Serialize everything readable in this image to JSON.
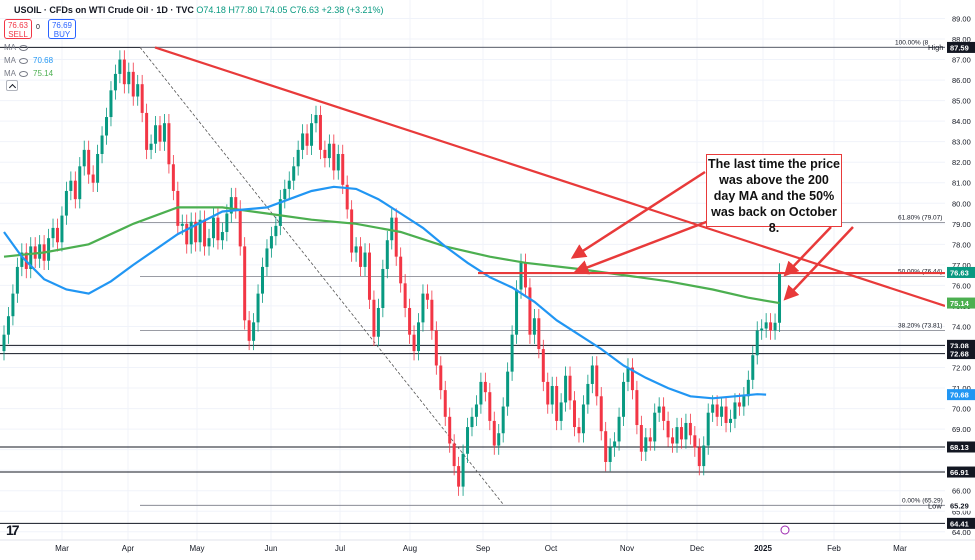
{
  "header": {
    "symbol": "USOIL · CFDs on WTI Crude Oil · 1D · TVC",
    "ohlc": "O74.18 H77.80 L74.05 C76.63 +2.38 (+3.21%)",
    "sell_price": "76.63",
    "sell_label": "SELL",
    "spread": "0",
    "buy_price": "76.69",
    "buy_label": "BUY"
  },
  "indicators": [
    {
      "label": "MA",
      "value": "",
      "color": "#787b86"
    },
    {
      "label": "MA",
      "value": "70.68",
      "color": "#2196f3"
    },
    {
      "label": "MA",
      "value": "75.14",
      "color": "#4caf50"
    }
  ],
  "annotation": "The last time the price was above the 200 day MA and the 50% was back on October 8.",
  "chart_data": {
    "type": "candlestick",
    "x_labels": [
      "Mar",
      "Apr",
      "May",
      "Jun",
      "Jul",
      "Aug",
      "Sep",
      "Oct",
      "Nov",
      "Dec",
      "2025",
      "Feb",
      "Mar"
    ],
    "ylim": [
      63.6,
      89.9
    ],
    "y_ticks": [
      64.0,
      65.0,
      66.0,
      67.0,
      68.0,
      69.0,
      70.0,
      71.0,
      72.0,
      73.0,
      74.0,
      75.0,
      76.0,
      77.0,
      78.0,
      79.0,
      80.0,
      81.0,
      82.0,
      83.0,
      84.0,
      85.0,
      86.0,
      87.0,
      88.0,
      89.0
    ],
    "candles": [
      {
        "d": 1,
        "o": 72.8,
        "c": 73.6
      },
      {
        "d": 2,
        "o": 73.6,
        "c": 74.5
      },
      {
        "d": 3,
        "o": 74.5,
        "c": 75.6
      },
      {
        "d": 4,
        "o": 75.6,
        "c": 76.9
      },
      {
        "d": 5,
        "o": 76.9,
        "c": 77.6
      },
      {
        "d": 6,
        "o": 77.6,
        "c": 76.8
      },
      {
        "d": 7,
        "o": 76.8,
        "c": 77.9
      },
      {
        "d": 8,
        "o": 77.9,
        "c": 77.3
      },
      {
        "d": 9,
        "o": 77.3,
        "c": 78.0
      },
      {
        "d": 10,
        "o": 78.0,
        "c": 77.2
      },
      {
        "d": 11,
        "o": 77.2,
        "c": 78.3
      },
      {
        "d": 12,
        "o": 78.3,
        "c": 78.8
      },
      {
        "d": 13,
        "o": 78.8,
        "c": 78.1
      },
      {
        "d": 14,
        "o": 78.1,
        "c": 79.4
      },
      {
        "d": 15,
        "o": 79.4,
        "c": 80.6
      },
      {
        "d": 16,
        "o": 80.6,
        "c": 81.1
      },
      {
        "d": 17,
        "o": 81.1,
        "c": 80.2
      },
      {
        "d": 18,
        "o": 80.2,
        "c": 81.8
      },
      {
        "d": 19,
        "o": 81.8,
        "c": 82.6
      },
      {
        "d": 20,
        "o": 82.6,
        "c": 81.4
      },
      {
        "d": 21,
        "o": 81.4,
        "c": 81.0
      },
      {
        "d": 22,
        "o": 81.0,
        "c": 82.4
      },
      {
        "d": 23,
        "o": 82.4,
        "c": 83.3
      },
      {
        "d": 24,
        "o": 83.3,
        "c": 84.2
      },
      {
        "d": 25,
        "o": 84.2,
        "c": 85.5
      },
      {
        "d": 26,
        "o": 85.5,
        "c": 86.3
      },
      {
        "d": 27,
        "o": 86.3,
        "c": 87.0
      },
      {
        "d": 28,
        "o": 87.0,
        "c": 85.8
      },
      {
        "d": 29,
        "o": 85.8,
        "c": 86.4
      },
      {
        "d": 30,
        "o": 86.4,
        "c": 85.2
      },
      {
        "d": 31,
        "o": 85.2,
        "c": 85.8
      },
      {
        "d": 32,
        "o": 85.8,
        "c": 84.4
      },
      {
        "d": 33,
        "o": 84.4,
        "c": 82.6
      },
      {
        "d": 34,
        "o": 82.6,
        "c": 82.9
      },
      {
        "d": 35,
        "o": 82.9,
        "c": 83.8
      },
      {
        "d": 36,
        "o": 83.8,
        "c": 83.0
      },
      {
        "d": 37,
        "o": 83.0,
        "c": 83.9
      },
      {
        "d": 38,
        "o": 83.9,
        "c": 81.9
      },
      {
        "d": 39,
        "o": 81.9,
        "c": 80.6
      },
      {
        "d": 40,
        "o": 80.6,
        "c": 78.9
      },
      {
        "d": 41,
        "o": 78.9,
        "c": 79.0
      },
      {
        "d": 42,
        "o": 79.0,
        "c": 78.0
      },
      {
        "d": 43,
        "o": 78.0,
        "c": 79.1
      },
      {
        "d": 44,
        "o": 79.1,
        "c": 78.1
      },
      {
        "d": 45,
        "o": 78.1,
        "c": 79.2
      },
      {
        "d": 46,
        "o": 79.2,
        "c": 77.9
      },
      {
        "d": 47,
        "o": 77.9,
        "c": 78.3
      },
      {
        "d": 48,
        "o": 78.3,
        "c": 79.3
      },
      {
        "d": 49,
        "o": 79.3,
        "c": 78.2
      },
      {
        "d": 50,
        "o": 78.2,
        "c": 78.6
      },
      {
        "d": 51,
        "o": 78.6,
        "c": 79.5
      },
      {
        "d": 52,
        "o": 79.5,
        "c": 80.3
      },
      {
        "d": 53,
        "o": 80.3,
        "c": 79.7
      },
      {
        "d": 54,
        "o": 79.7,
        "c": 77.9
      },
      {
        "d": 55,
        "o": 77.9,
        "c": 74.3
      },
      {
        "d": 56,
        "o": 74.3,
        "c": 73.3
      },
      {
        "d": 57,
        "o": 73.3,
        "c": 74.2
      },
      {
        "d": 58,
        "o": 74.2,
        "c": 75.6
      },
      {
        "d": 59,
        "o": 75.6,
        "c": 76.9
      },
      {
        "d": 60,
        "o": 76.9,
        "c": 77.8
      },
      {
        "d": 61,
        "o": 77.8,
        "c": 78.4
      },
      {
        "d": 62,
        "o": 78.4,
        "c": 78.9
      },
      {
        "d": 63,
        "o": 78.9,
        "c": 80.2
      },
      {
        "d": 64,
        "o": 80.2,
        "c": 80.7
      },
      {
        "d": 65,
        "o": 80.7,
        "c": 81.1
      },
      {
        "d": 66,
        "o": 81.1,
        "c": 81.8
      },
      {
        "d": 67,
        "o": 81.8,
        "c": 82.6
      },
      {
        "d": 68,
        "o": 82.6,
        "c": 83.4
      },
      {
        "d": 69,
        "o": 83.4,
        "c": 82.8
      },
      {
        "d": 70,
        "o": 82.8,
        "c": 83.9
      },
      {
        "d": 71,
        "o": 83.9,
        "c": 84.3
      },
      {
        "d": 72,
        "o": 84.3,
        "c": 82.6
      },
      {
        "d": 73,
        "o": 82.6,
        "c": 82.2
      },
      {
        "d": 74,
        "o": 82.2,
        "c": 82.9
      },
      {
        "d": 75,
        "o": 82.9,
        "c": 81.6
      },
      {
        "d": 76,
        "o": 81.6,
        "c": 82.4
      },
      {
        "d": 77,
        "o": 82.4,
        "c": 80.9
      },
      {
        "d": 78,
        "o": 80.9,
        "c": 79.7
      },
      {
        "d": 79,
        "o": 79.7,
        "c": 77.6
      },
      {
        "d": 80,
        "o": 77.6,
        "c": 77.9
      },
      {
        "d": 81,
        "o": 77.9,
        "c": 76.9
      },
      {
        "d": 82,
        "o": 76.9,
        "c": 77.6
      },
      {
        "d": 83,
        "o": 77.6,
        "c": 75.3
      },
      {
        "d": 84,
        "o": 75.3,
        "c": 73.5
      },
      {
        "d": 85,
        "o": 73.5,
        "c": 74.9
      },
      {
        "d": 86,
        "o": 74.9,
        "c": 76.8
      },
      {
        "d": 87,
        "o": 76.8,
        "c": 78.2
      },
      {
        "d": 88,
        "o": 78.2,
        "c": 79.3
      },
      {
        "d": 89,
        "o": 79.3,
        "c": 77.4
      },
      {
        "d": 90,
        "o": 77.4,
        "c": 76.1
      },
      {
        "d": 91,
        "o": 76.1,
        "c": 74.9
      },
      {
        "d": 92,
        "o": 74.9,
        "c": 73.6
      },
      {
        "d": 93,
        "o": 73.6,
        "c": 72.8
      },
      {
        "d": 94,
        "o": 72.8,
        "c": 74.2
      },
      {
        "d": 95,
        "o": 74.2,
        "c": 75.6
      },
      {
        "d": 96,
        "o": 75.6,
        "c": 75.3
      },
      {
        "d": 97,
        "o": 75.3,
        "c": 73.8
      },
      {
        "d": 98,
        "o": 73.8,
        "c": 72.1
      },
      {
        "d": 99,
        "o": 72.1,
        "c": 70.9
      },
      {
        "d": 100,
        "o": 70.9,
        "c": 69.6
      },
      {
        "d": 101,
        "o": 69.6,
        "c": 68.3
      },
      {
        "d": 102,
        "o": 68.3,
        "c": 67.2
      },
      {
        "d": 103,
        "o": 67.2,
        "c": 66.2
      },
      {
        "d": 104,
        "o": 66.2,
        "c": 67.8
      },
      {
        "d": 105,
        "o": 67.8,
        "c": 69.1
      },
      {
        "d": 106,
        "o": 69.1,
        "c": 69.6
      },
      {
        "d": 107,
        "o": 69.6,
        "c": 70.2
      },
      {
        "d": 108,
        "o": 70.2,
        "c": 71.3
      },
      {
        "d": 109,
        "o": 71.3,
        "c": 70.8
      },
      {
        "d": 110,
        "o": 70.8,
        "c": 69.4
      },
      {
        "d": 111,
        "o": 69.4,
        "c": 68.2
      },
      {
        "d": 112,
        "o": 68.2,
        "c": 68.8
      },
      {
        "d": 113,
        "o": 68.8,
        "c": 70.1
      },
      {
        "d": 114,
        "o": 70.1,
        "c": 71.8
      },
      {
        "d": 115,
        "o": 71.8,
        "c": 73.6
      },
      {
        "d": 116,
        "o": 73.6,
        "c": 75.8
      },
      {
        "d": 117,
        "o": 75.8,
        "c": 77.1
      },
      {
        "d": 118,
        "o": 77.1,
        "c": 75.9
      },
      {
        "d": 119,
        "o": 75.9,
        "c": 73.6
      },
      {
        "d": 120,
        "o": 73.6,
        "c": 74.4
      },
      {
        "d": 121,
        "o": 74.4,
        "c": 72.9
      },
      {
        "d": 122,
        "o": 72.9,
        "c": 71.3
      },
      {
        "d": 123,
        "o": 71.3,
        "c": 70.2
      },
      {
        "d": 124,
        "o": 70.2,
        "c": 71.1
      },
      {
        "d": 125,
        "o": 71.1,
        "c": 69.4
      },
      {
        "d": 126,
        "o": 69.4,
        "c": 70.3
      },
      {
        "d": 127,
        "o": 70.3,
        "c": 71.6
      },
      {
        "d": 128,
        "o": 71.6,
        "c": 70.4
      },
      {
        "d": 129,
        "o": 70.4,
        "c": 69.1
      },
      {
        "d": 130,
        "o": 69.1,
        "c": 68.8
      },
      {
        "d": 131,
        "o": 68.8,
        "c": 70.2
      },
      {
        "d": 132,
        "o": 70.2,
        "c": 71.2
      },
      {
        "d": 133,
        "o": 71.2,
        "c": 72.1
      },
      {
        "d": 134,
        "o": 72.1,
        "c": 70.6
      },
      {
        "d": 135,
        "o": 70.6,
        "c": 68.9
      },
      {
        "d": 136,
        "o": 68.9,
        "c": 67.4
      },
      {
        "d": 137,
        "o": 67.4,
        "c": 68.1
      },
      {
        "d": 138,
        "o": 68.1,
        "c": 68.4
      },
      {
        "d": 139,
        "o": 68.4,
        "c": 69.6
      },
      {
        "d": 140,
        "o": 69.6,
        "c": 71.3
      },
      {
        "d": 141,
        "o": 71.3,
        "c": 72.0
      },
      {
        "d": 142,
        "o": 72.0,
        "c": 70.9
      },
      {
        "d": 143,
        "o": 70.9,
        "c": 69.2
      },
      {
        "d": 144,
        "o": 69.2,
        "c": 67.9
      },
      {
        "d": 145,
        "o": 67.9,
        "c": 68.6
      },
      {
        "d": 146,
        "o": 68.6,
        "c": 68.4
      },
      {
        "d": 147,
        "o": 68.4,
        "c": 69.8
      },
      {
        "d": 148,
        "o": 69.8,
        "c": 70.1
      },
      {
        "d": 149,
        "o": 70.1,
        "c": 69.4
      },
      {
        "d": 150,
        "o": 69.4,
        "c": 68.6
      },
      {
        "d": 151,
        "o": 68.6,
        "c": 68.3
      },
      {
        "d": 152,
        "o": 68.3,
        "c": 69.1
      },
      {
        "d": 153,
        "o": 69.1,
        "c": 68.5
      },
      {
        "d": 154,
        "o": 68.5,
        "c": 69.3
      },
      {
        "d": 155,
        "o": 69.3,
        "c": 68.7
      },
      {
        "d": 156,
        "o": 68.7,
        "c": 68.1
      },
      {
        "d": 157,
        "o": 68.1,
        "c": 67.2
      },
      {
        "d": 158,
        "o": 67.2,
        "c": 68.2
      },
      {
        "d": 159,
        "o": 68.2,
        "c": 69.8
      },
      {
        "d": 160,
        "o": 69.8,
        "c": 70.2
      },
      {
        "d": 161,
        "o": 70.2,
        "c": 69.6
      },
      {
        "d": 162,
        "o": 69.6,
        "c": 70.1
      },
      {
        "d": 163,
        "o": 70.1,
        "c": 69.3
      },
      {
        "d": 164,
        "o": 69.3,
        "c": 69.5
      },
      {
        "d": 165,
        "o": 69.5,
        "c": 70.3
      },
      {
        "d": 166,
        "o": 70.3,
        "c": 70.1
      },
      {
        "d": 167,
        "o": 70.1,
        "c": 70.6
      },
      {
        "d": 168,
        "o": 70.6,
        "c": 71.4
      },
      {
        "d": 169,
        "o": 71.4,
        "c": 72.6
      },
      {
        "d": 170,
        "o": 72.6,
        "c": 73.8
      },
      {
        "d": 171,
        "o": 73.8,
        "c": 73.9
      },
      {
        "d": 172,
        "o": 73.9,
        "c": 74.2
      },
      {
        "d": 173,
        "o": 74.2,
        "c": 73.8
      },
      {
        "d": 174,
        "o": 73.8,
        "c": 74.18
      },
      {
        "d": 175,
        "o": 74.18,
        "c": 76.63
      }
    ],
    "series": [
      {
        "name": "MA",
        "color": "#4caf50",
        "values": [
          [
            1,
            77.4
          ],
          [
            10,
            77.6
          ],
          [
            20,
            78.0
          ],
          [
            30,
            79.0
          ],
          [
            40,
            79.8
          ],
          [
            50,
            79.8
          ],
          [
            60,
            79.5
          ],
          [
            70,
            79.2
          ],
          [
            80,
            79.0
          ],
          [
            90,
            78.6
          ],
          [
            100,
            77.9
          ],
          [
            110,
            77.4
          ],
          [
            118,
            77.1
          ],
          [
            130,
            76.8
          ],
          [
            140,
            76.5
          ],
          [
            150,
            76.2
          ],
          [
            160,
            75.8
          ],
          [
            168,
            75.4
          ],
          [
            175,
            75.14
          ]
        ]
      },
      {
        "name": "MA",
        "color": "#2196f3",
        "values": [
          [
            1,
            78.6
          ],
          [
            5,
            77.4
          ],
          [
            10,
            76.3
          ],
          [
            15,
            75.8
          ],
          [
            20,
            75.6
          ],
          [
            25,
            76.2
          ],
          [
            30,
            77.0
          ],
          [
            40,
            78.5
          ],
          [
            50,
            79.6
          ],
          [
            60,
            79.8
          ],
          [
            65,
            80.2
          ],
          [
            70,
            80.6
          ],
          [
            75,
            80.8
          ],
          [
            80,
            80.7
          ],
          [
            85,
            80.2
          ],
          [
            90,
            79.5
          ],
          [
            95,
            78.8
          ],
          [
            100,
            77.9
          ],
          [
            105,
            77.1
          ],
          [
            110,
            76.4
          ],
          [
            115,
            75.9
          ],
          [
            120,
            75.2
          ],
          [
            125,
            74.3
          ],
          [
            130,
            73.6
          ],
          [
            135,
            72.9
          ],
          [
            140,
            72.1
          ],
          [
            145,
            71.5
          ],
          [
            150,
            71.0
          ],
          [
            155,
            70.6
          ],
          [
            160,
            70.5
          ],
          [
            165,
            70.6
          ],
          [
            170,
            70.7
          ],
          [
            172,
            70.68
          ]
        ]
      }
    ],
    "levels": [
      {
        "label": "100.00% (8",
        "value": 87.59
      },
      {
        "label": "61.80% (79.07)",
        "value": 79.07
      },
      {
        "label": "50.00% (76.44)",
        "value": 76.44
      },
      {
        "label": "38.20% (73.81)",
        "value": 73.81
      },
      {
        "label": "0.00% (65.29)",
        "value": 65.29
      }
    ],
    "right_labels": [
      {
        "text": "87.60",
        "tag": "High",
        "value": 87.6,
        "bg": "#ffffff",
        "fg": "#131722"
      },
      {
        "text": "87.59",
        "value": 87.59,
        "bg": "#131722",
        "fg": "#ffffff"
      },
      {
        "text": "76.63",
        "value": 76.63,
        "bg": "#089981",
        "fg": "#ffffff"
      },
      {
        "text": "75.14",
        "value": 75.14,
        "bg": "#4caf50",
        "fg": "#ffffff"
      },
      {
        "text": "73.08",
        "value": 73.08,
        "bg": "#131722",
        "fg": "#ffffff"
      },
      {
        "text": "72.68",
        "value": 72.68,
        "bg": "#131722",
        "fg": "#ffffff"
      },
      {
        "text": "70.68",
        "value": 70.68,
        "bg": "#2196f3",
        "fg": "#ffffff"
      },
      {
        "text": "68.13",
        "value": 68.13,
        "bg": "#131722",
        "fg": "#ffffff"
      },
      {
        "text": "66.91",
        "value": 66.91,
        "bg": "#131722",
        "fg": "#ffffff"
      },
      {
        "text": "65.29",
        "tag": "Low",
        "value": 65.29,
        "bg": "#ffffff",
        "fg": "#131722"
      },
      {
        "text": "64.41",
        "value": 64.41,
        "bg": "#131722",
        "fg": "#ffffff"
      }
    ],
    "colors": {
      "up": "#089981",
      "down": "#f23645",
      "trend": "#e83a3a",
      "annotation": "#e83a3a"
    }
  }
}
